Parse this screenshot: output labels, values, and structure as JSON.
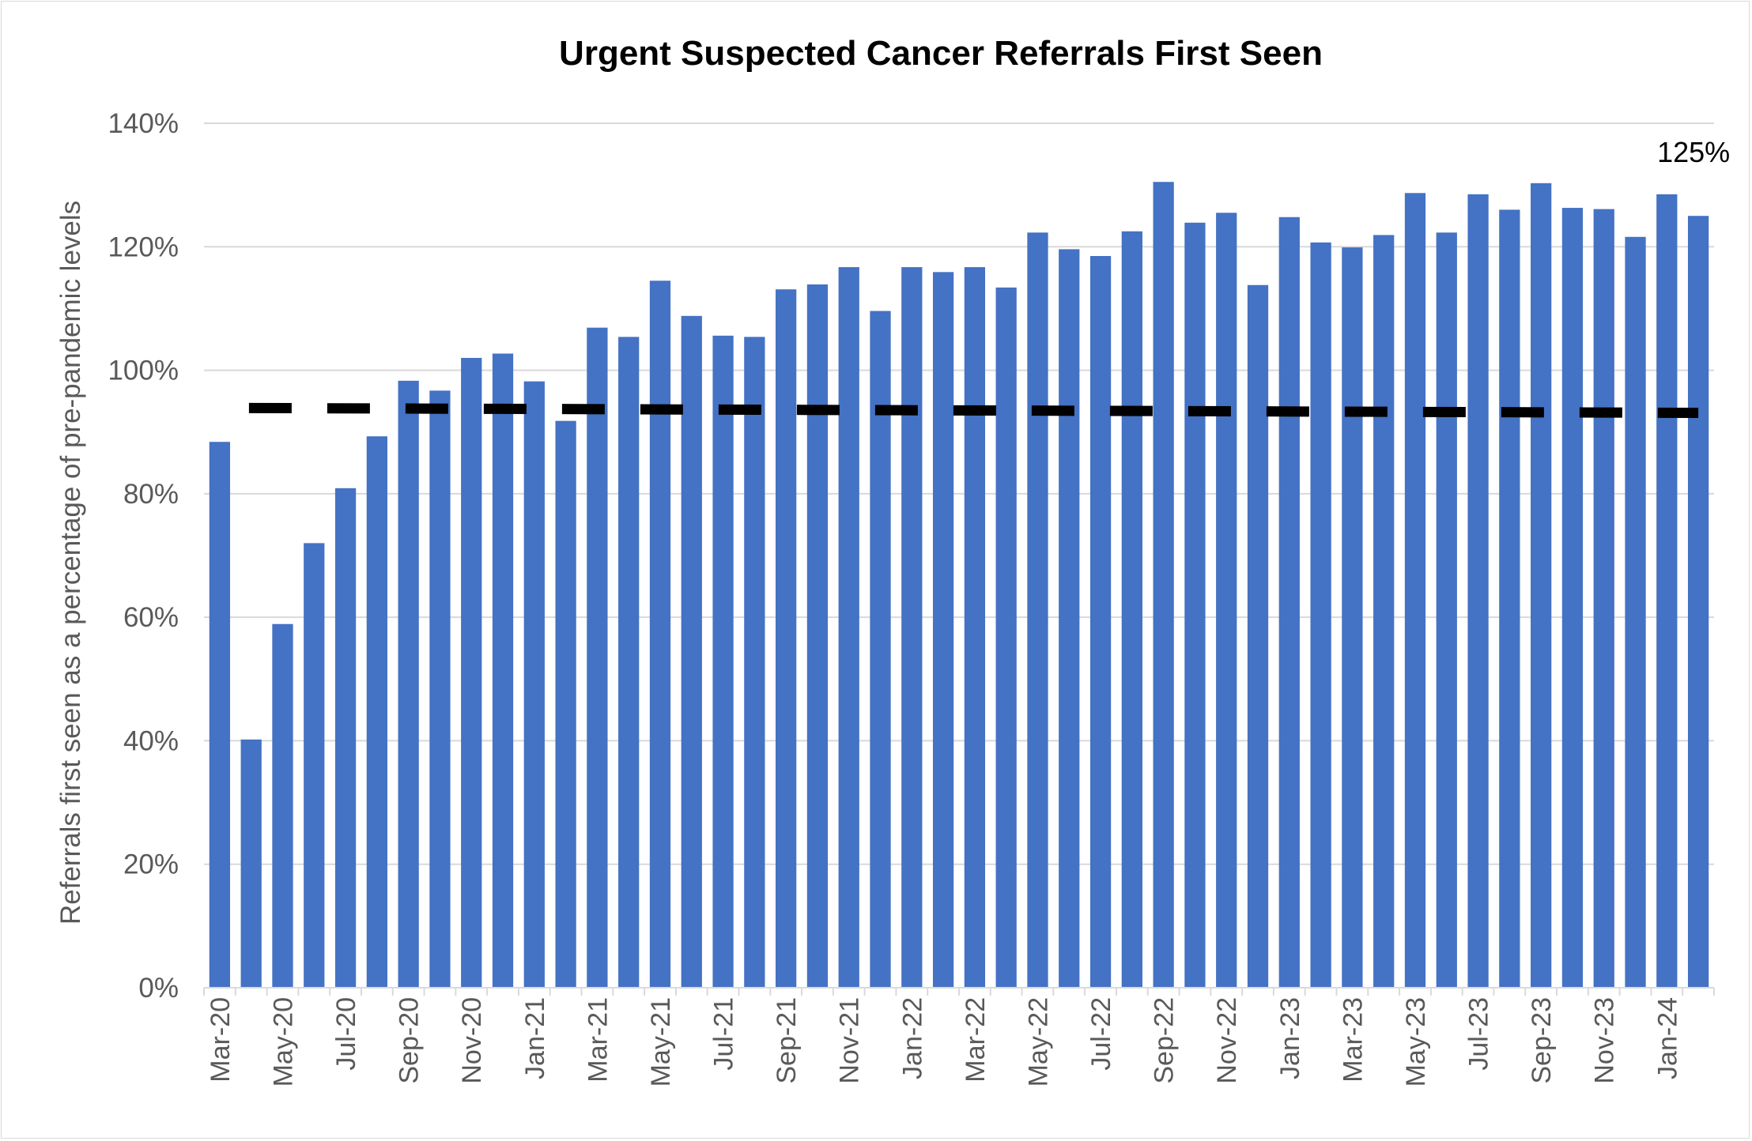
{
  "chart_data": {
    "type": "bar",
    "title": "Urgent Suspected Cancer Referrals First Seen",
    "ylabel": "Referrals first seen as a percentage of pre-pandemic levels",
    "xlabel": "",
    "ylim": [
      0,
      1.4
    ],
    "yticks": [
      "0%",
      "20%",
      "40%",
      "60%",
      "80%",
      "100%",
      "120%",
      "140%"
    ],
    "grid": true,
    "categories": [
      "Mar-20",
      "Apr-20",
      "May-20",
      "Jun-20",
      "Jul-20",
      "Aug-20",
      "Sep-20",
      "Oct-20",
      "Nov-20",
      "Dec-20",
      "Jan-21",
      "Feb-21",
      "Mar-21",
      "Apr-21",
      "May-21",
      "Jun-21",
      "Jul-21",
      "Aug-21",
      "Sep-21",
      "Oct-21",
      "Nov-21",
      "Dec-21",
      "Jan-22",
      "Feb-22",
      "Mar-22",
      "Apr-22",
      "May-22",
      "Jun-22",
      "Jul-22",
      "Aug-22",
      "Sep-22",
      "Oct-22",
      "Nov-22",
      "Dec-22",
      "Jan-23",
      "Feb-23",
      "Mar-23",
      "Apr-23",
      "May-23",
      "Jun-23",
      "Jul-23",
      "Aug-23",
      "Sep-23",
      "Oct-23",
      "Nov-23",
      "Dec-23",
      "Jan-24",
      "Feb-24"
    ],
    "xtick_labels": [
      "Mar-20",
      "",
      "May-20",
      "",
      "Jul-20",
      "",
      "Sep-20",
      "",
      "Nov-20",
      "",
      "Jan-21",
      "",
      "Mar-21",
      "",
      "May-21",
      "",
      "Jul-21",
      "",
      "Sep-21",
      "",
      "Nov-21",
      "",
      "Jan-22",
      "",
      "Mar-22",
      "",
      "May-22",
      "",
      "Jul-22",
      "",
      "Sep-22",
      "",
      "Nov-22",
      "",
      "Jan-23",
      "",
      "Mar-23",
      "",
      "May-23",
      "",
      "Jul-23",
      "",
      "Sep-23",
      "",
      "Nov-23",
      "",
      "Jan-24",
      ""
    ],
    "series": [
      {
        "type": "bar",
        "color": "#4472c4",
        "values": [
          0.884,
          0.402,
          0.589,
          0.72,
          0.809,
          0.893,
          0.983,
          0.967,
          1.02,
          1.027,
          0.982,
          0.918,
          1.069,
          1.054,
          1.145,
          1.088,
          1.056,
          1.054,
          1.131,
          1.139,
          1.167,
          1.096,
          1.167,
          1.159,
          1.167,
          1.134,
          1.223,
          1.196,
          1.185,
          1.225,
          1.305,
          1.239,
          1.255,
          1.138,
          1.248,
          1.207,
          1.199,
          1.219,
          1.287,
          1.223,
          1.285,
          1.26,
          1.303,
          1.263,
          1.261,
          1.216,
          1.285,
          1.25
        ]
      },
      {
        "type": "line",
        "style": "dashed",
        "color": "#000000",
        "start": 0.939,
        "end": 0.931
      }
    ],
    "annotations": [
      {
        "text": "125%",
        "category": "Feb-24"
      }
    ]
  }
}
